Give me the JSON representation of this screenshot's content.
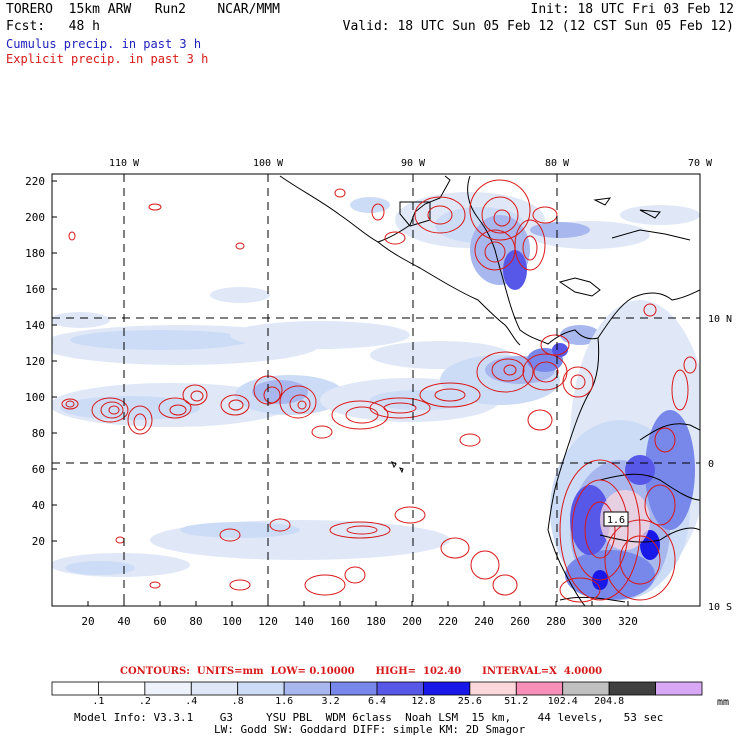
{
  "header": {
    "title": "TORERO  15km ARW   Run2    NCAR/MMM",
    "init": "Init: 18 UTC Fri 03 Feb 12",
    "fcst": "Fcst:   48 h",
    "valid": "Valid: 18 UTC Sun 05 Feb 12 (12 CST Sun 05 Feb 12)",
    "legend_cumulus": "Cumulus precip. in past 3 h",
    "legend_explicit": "Explicit precip. in past 3 h"
  },
  "map": {
    "lon_labels": [
      "110 W",
      "100 W",
      "90 W",
      "80 W",
      "70 W"
    ],
    "lat_labels": [
      "10 N",
      "0",
      "10 S"
    ],
    "y_ticks": [
      "220",
      "200",
      "180",
      "160",
      "140",
      "120",
      "100",
      "80",
      "60",
      "40",
      "20"
    ],
    "x_ticks": [
      "20",
      "40",
      "60",
      "80",
      "100",
      "120",
      "140",
      "160",
      "180",
      "200",
      "220",
      "240",
      "260",
      "280",
      "300",
      "320"
    ],
    "box_label": "1.6"
  },
  "contours": {
    "text": "CONTOURS:  UNITS=mm  LOW= 0.10000      HIGH=  102.40      INTERVAL=X  4.0000"
  },
  "colorbar": {
    "labels": [
      ".1",
      ".2",
      ".4",
      ".8",
      "1.6",
      "3.2",
      "6.4",
      "12.8",
      "25.6",
      "51.2",
      "102.4",
      "204.8"
    ],
    "unit": "mm",
    "colors": [
      "#ffffff",
      "#ffffff",
      "#eef2fb",
      "#e0e8f8",
      "#cddcf6",
      "#a8b8ee",
      "#7888ea",
      "#5858e8",
      "#1818e8",
      "#fcd8dc",
      "#f78fb8",
      "#c0c0c0",
      "#404040",
      "#d8a8f4"
    ]
  },
  "model_info": {
    "line1": "Model Info: V3.3.1    G3     YSU PBL  WDM 6class  Noah LSM  15 km,    44 levels,   53 sec",
    "line2": "LW: Godd SW: Goddard DIFF: simple KM: 2D Smagor"
  }
}
